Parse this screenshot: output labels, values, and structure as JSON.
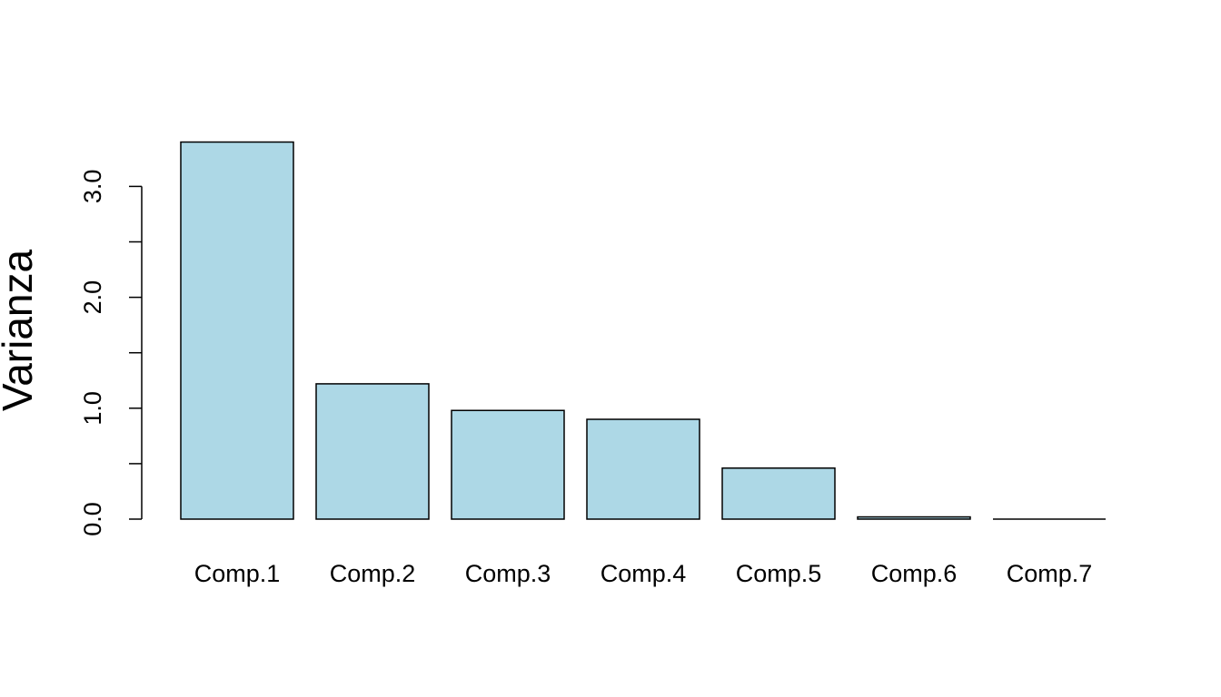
{
  "chart_data": {
    "type": "bar",
    "title": "",
    "xlabel": "",
    "ylabel": "Varianza",
    "categories": [
      "Comp.1",
      "Comp.2",
      "Comp.3",
      "Comp.4",
      "Comp.5",
      "Comp.6",
      "Comp.7"
    ],
    "values": [
      3.4,
      1.22,
      0.98,
      0.9,
      0.46,
      0.02,
      0.0
    ],
    "ylim": [
      0,
      3.4
    ],
    "yticks": [
      0.0,
      0.5,
      1.0,
      1.5,
      2.0,
      2.5,
      3.0
    ],
    "ytick_labels": [
      "0.0",
      "",
      "1.0",
      "",
      "2.0",
      "",
      "3.0"
    ],
    "grid": false,
    "legend": "none",
    "colors": {
      "bar_fill": "#ADD8E6",
      "bar_stroke": "#000000"
    }
  }
}
